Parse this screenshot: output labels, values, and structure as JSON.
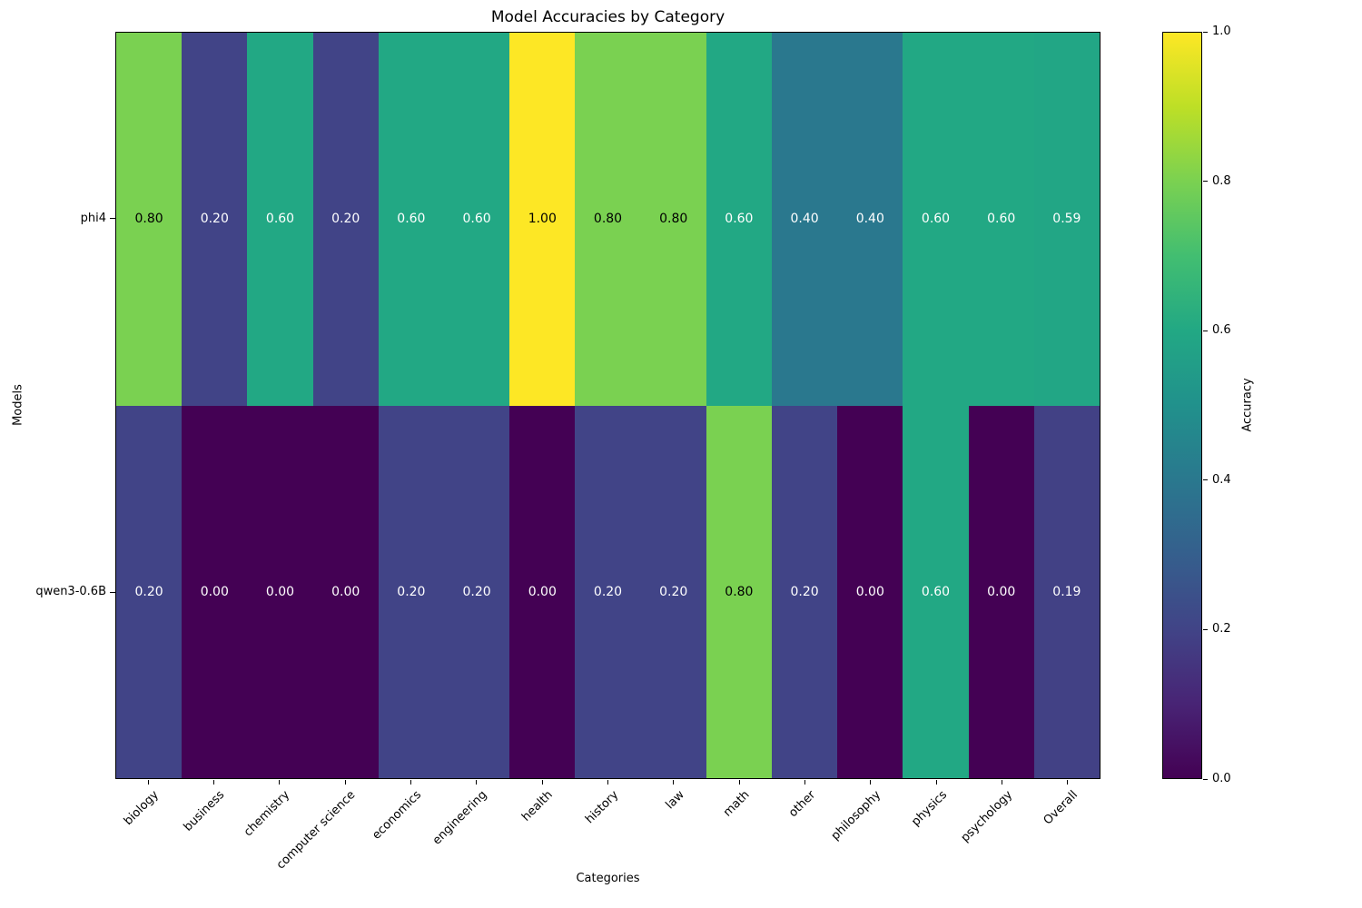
{
  "title": "Model Accuracies by Category",
  "xlabel": "Categories",
  "ylabel": "Models",
  "colorbar": {
    "label": "Accuracy",
    "tick_labels": [
      "1.0",
      "0.8",
      "0.6",
      "0.4",
      "0.2",
      "0.0"
    ],
    "tick_values": [
      1.0,
      0.8,
      0.6,
      0.4,
      0.2,
      0.0
    ]
  },
  "chart_data": {
    "type": "heatmap",
    "categories": [
      "biology",
      "business",
      "chemistry",
      "computer science",
      "economics",
      "engineering",
      "health",
      "history",
      "law",
      "math",
      "other",
      "philosophy",
      "physics",
      "psychology",
      "Overall"
    ],
    "rows": [
      "phi4",
      "qwen3-0.6B"
    ],
    "series": [
      {
        "name": "phi4",
        "values": [
          0.8,
          0.2,
          0.6,
          0.2,
          0.6,
          0.6,
          1.0,
          0.8,
          0.8,
          0.6,
          0.4,
          0.4,
          0.6,
          0.6,
          0.59
        ]
      },
      {
        "name": "qwen3-0.6B",
        "values": [
          0.2,
          0.0,
          0.0,
          0.0,
          0.2,
          0.2,
          0.0,
          0.2,
          0.2,
          0.8,
          0.2,
          0.0,
          0.6,
          0.0,
          0.19
        ]
      }
    ],
    "vmin": 0.0,
    "vmax": 1.0,
    "value_decimals": 2,
    "colormap": "viridis",
    "legend_position": "right-colorbar",
    "grid": false
  },
  "colors": {
    "viridis_stops": [
      [
        0.0,
        "#440154"
      ],
      [
        0.1,
        "#482475"
      ],
      [
        0.2,
        "#414487"
      ],
      [
        0.3,
        "#355f8d"
      ],
      [
        0.4,
        "#2a788e"
      ],
      [
        0.5,
        "#21918c"
      ],
      [
        0.6,
        "#22a884"
      ],
      [
        0.7,
        "#42be71"
      ],
      [
        0.8,
        "#7ad151"
      ],
      [
        0.9,
        "#bddf26"
      ],
      [
        1.0,
        "#fde725"
      ]
    ],
    "annotation_dark": "#000000",
    "annotation_light": "#ffffff",
    "annotation_dark_threshold": 0.8,
    "axis": "#000000",
    "background": "#ffffff"
  }
}
